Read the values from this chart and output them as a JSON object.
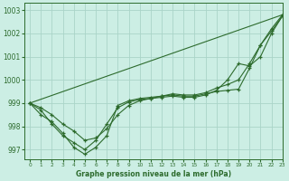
{
  "title": "Graphe pression niveau de la mer (hPa)",
  "bg_color": "#cceee4",
  "grid_color": "#aad4c8",
  "line_color": "#2d6b2d",
  "xlim": [
    -0.5,
    23
  ],
  "ylim": [
    996.6,
    1003.3
  ],
  "yticks": [
    997,
    998,
    999,
    1000,
    1001,
    1002,
    1003
  ],
  "xticks": [
    0,
    1,
    2,
    3,
    4,
    5,
    6,
    7,
    8,
    9,
    10,
    11,
    12,
    13,
    14,
    15,
    16,
    17,
    18,
    19,
    20,
    21,
    22,
    23
  ],
  "line1_x": [
    0,
    1,
    2,
    3,
    4,
    5,
    6,
    7,
    8,
    9,
    10,
    11,
    12,
    13,
    14,
    15,
    16,
    17,
    18,
    19,
    20,
    21,
    22,
    23
  ],
  "line1_y": [
    999.0,
    998.5,
    998.2,
    997.7,
    997.1,
    996.8,
    997.1,
    997.6,
    998.9,
    999.1,
    999.2,
    999.25,
    999.3,
    999.35,
    999.3,
    999.3,
    999.4,
    999.5,
    999.55,
    999.6,
    1000.5,
    1001.5,
    1002.2,
    1002.8
  ],
  "line2_x": [
    0,
    1,
    2,
    3,
    4,
    5,
    6,
    7,
    8,
    9,
    10,
    11,
    12,
    13,
    14,
    15,
    16,
    17,
    18,
    19,
    20,
    21,
    22,
    23
  ],
  "line2_y": [
    999.0,
    998.7,
    998.1,
    997.6,
    997.3,
    997.0,
    997.4,
    998.1,
    998.8,
    999.05,
    999.15,
    999.2,
    999.25,
    999.3,
    999.25,
    999.25,
    999.35,
    999.55,
    1000.0,
    1000.7,
    1000.6,
    1001.0,
    1002.0,
    1002.75
  ],
  "line3_x": [
    0,
    23
  ],
  "line3_y": [
    999.0,
    1002.8
  ],
  "line4_x": [
    0,
    1,
    2,
    3,
    4,
    5,
    6,
    7,
    8,
    9,
    10,
    11,
    12,
    13,
    14,
    15,
    16,
    17,
    18,
    19,
    20,
    21,
    22,
    23
  ],
  "line4_y": [
    999.0,
    998.8,
    998.5,
    998.1,
    997.8,
    997.4,
    997.5,
    997.9,
    998.5,
    998.9,
    999.1,
    999.2,
    999.3,
    999.4,
    999.35,
    999.35,
    999.45,
    999.65,
    999.8,
    1000.0,
    1000.7,
    1001.5,
    1002.1,
    1002.75
  ]
}
